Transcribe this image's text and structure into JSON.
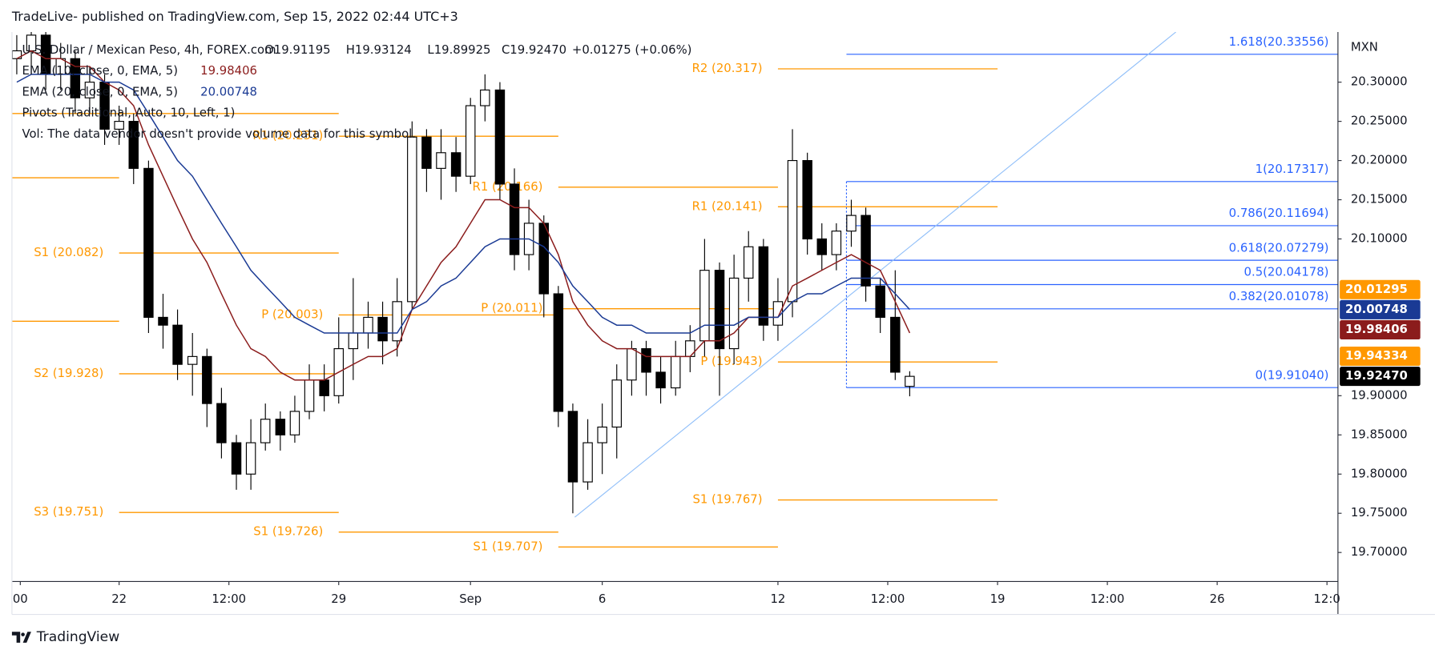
{
  "chart_data": {
    "type": "candlestick",
    "header": "TradeLive- published on TradingView.com, Sep 15, 2022 02:44 UTC+3",
    "symbol": "U.S. Dollar / Mexican Peso, 4h, FOREX.com",
    "ohlc": [
      "O19.91195",
      "H19.93124",
      "L19.89925",
      "C19.92470",
      "+0.01275 (+0.06%)"
    ],
    "notes": [
      "Pivots (Traditional, Auto, 10, Left, 1)",
      "Vol: The data vendor doesn't provide volume data for this symbol."
    ],
    "currency": "MXN",
    "brand": "TradingView",
    "up_color": "#ffffff",
    "down_color": "#000000",
    "xlim": [
      -2.44,
      27.75
    ],
    "ylim": [
      19.663,
      20.364
    ],
    "xticks": [
      {
        "value": -2.25,
        "label": "00"
      },
      {
        "value": 0,
        "label": "22"
      },
      {
        "value": 2.5,
        "label": "12:00"
      },
      {
        "value": 5,
        "label": "29"
      },
      {
        "value": 8,
        "label": "Sep"
      },
      {
        "value": 11,
        "label": "6"
      },
      {
        "value": 15,
        "label": "12"
      },
      {
        "value": 17.5,
        "label": "12:00"
      },
      {
        "value": 20,
        "label": "19"
      },
      {
        "value": 22.5,
        "label": "12:00"
      },
      {
        "value": 25,
        "label": "26"
      },
      {
        "value": 27.5,
        "label": "12:0"
      }
    ],
    "yticks": [
      {
        "value": 19.7,
        "label": "19.70000"
      },
      {
        "value": 19.75,
        "label": "19.75000"
      },
      {
        "value": 19.8,
        "label": "19.80000"
      },
      {
        "value": 19.85,
        "label": "19.85000"
      },
      {
        "value": 19.9,
        "label": "19.90000"
      },
      {
        "value": 20.1,
        "label": "20.10000"
      },
      {
        "value": 20.15,
        "label": "20.15000"
      },
      {
        "value": 20.2,
        "label": "20.20000"
      },
      {
        "value": 20.25,
        "label": "20.25000"
      },
      {
        "value": 20.3,
        "label": "20.30000"
      }
    ],
    "x": [
      -2.33,
      -2,
      -1.67,
      -1.33,
      -1,
      -0.67,
      -0.33,
      0,
      0.33,
      0.67,
      1,
      1.33,
      1.67,
      2,
      2.33,
      2.67,
      3,
      3.33,
      3.67,
      4,
      4.33,
      4.67,
      5,
      5.33,
      5.67,
      6,
      6.33,
      6.67,
      7,
      7.33,
      7.67,
      8,
      8.33,
      8.67,
      9,
      9.33,
      9.67,
      10,
      10.33,
      10.67,
      11,
      11.33,
      11.67,
      12,
      12.33,
      12.67,
      13,
      13.33,
      13.67,
      14,
      14.33,
      14.67,
      15,
      15.33,
      15.67,
      16,
      16.33,
      16.67,
      17,
      17.33,
      17.67,
      18
    ],
    "open": [
      20.33,
      20.34,
      20.36,
      20.31,
      20.33,
      20.28,
      20.3,
      20.24,
      20.25,
      20.19,
      20.0,
      19.99,
      19.94,
      19.95,
      19.89,
      19.84,
      19.8,
      19.84,
      19.87,
      19.85,
      19.88,
      19.92,
      19.9,
      19.96,
      19.98,
      20.0,
      19.97,
      20.02,
      20.23,
      20.19,
      20.21,
      20.18,
      20.27,
      20.29,
      20.17,
      20.08,
      20.12,
      20.03,
      19.88,
      19.79,
      19.84,
      19.86,
      19.92,
      19.96,
      19.93,
      19.91,
      19.95,
      19.97,
      20.06,
      19.96,
      20.05,
      20.09,
      19.99,
      20.02,
      20.2,
      20.1,
      20.08,
      20.11,
      20.13,
      20.04,
      20.0,
      19.91195
    ],
    "high": [
      20.36,
      20.37,
      20.37,
      20.35,
      20.34,
      20.32,
      20.31,
      20.27,
      20.26,
      20.2,
      20.03,
      20.01,
      19.98,
      19.96,
      19.91,
      19.85,
      19.87,
      19.89,
      19.88,
      19.9,
      19.94,
      19.94,
      20.0,
      20.05,
      20.02,
      20.02,
      20.05,
      20.25,
      20.24,
      20.24,
      20.23,
      20.28,
      20.31,
      20.3,
      20.19,
      20.15,
      20.13,
      20.04,
      19.89,
      19.87,
      19.89,
      19.94,
      19.97,
      19.97,
      19.95,
      19.97,
      19.99,
      20.1,
      20.07,
      20.08,
      20.11,
      20.1,
      20.05,
      20.24,
      20.21,
      20.12,
      20.12,
      20.15,
      20.14,
      20.05,
      20.06,
      19.93124
    ],
    "low": [
      20.31,
      20.32,
      20.29,
      20.29,
      20.26,
      20.26,
      20.22,
      20.22,
      20.17,
      19.98,
      19.96,
      19.92,
      19.9,
      19.86,
      19.82,
      19.78,
      19.78,
      19.83,
      19.83,
      19.84,
      19.87,
      19.88,
      19.89,
      19.92,
      19.96,
      19.94,
      19.95,
      20.01,
      20.16,
      20.15,
      20.16,
      20.17,
      20.25,
      20.15,
      20.06,
      20.06,
      20.0,
      19.86,
      19.75,
      19.78,
      19.8,
      19.82,
      19.9,
      19.9,
      19.89,
      19.9,
      19.93,
      19.95,
      19.9,
      19.94,
      20.02,
      19.97,
      19.97,
      20.0,
      20.08,
      20.06,
      20.06,
      20.09,
      20.02,
      19.98,
      19.92,
      19.89925
    ],
    "close": [
      20.34,
      20.36,
      20.31,
      20.33,
      20.28,
      20.3,
      20.24,
      20.25,
      20.19,
      20.0,
      19.99,
      19.94,
      19.95,
      19.89,
      19.84,
      19.8,
      19.84,
      19.87,
      19.85,
      19.88,
      19.92,
      19.9,
      19.96,
      19.98,
      20.0,
      19.97,
      20.02,
      20.23,
      20.19,
      20.21,
      20.18,
      20.27,
      20.29,
      20.17,
      20.08,
      20.12,
      20.03,
      19.88,
      19.79,
      19.84,
      19.86,
      19.92,
      19.96,
      19.93,
      19.91,
      19.95,
      19.97,
      20.06,
      19.96,
      20.05,
      20.09,
      19.99,
      20.02,
      20.2,
      20.1,
      20.08,
      20.11,
      20.13,
      20.04,
      20.0,
      19.93,
      19.9247
    ],
    "series": [
      {
        "name": "EMA (10, close, 0, EMA, 5)",
        "value_label": "19.98406",
        "color": "#8b1c1c",
        "values": [
          20.33,
          20.34,
          20.33,
          20.33,
          20.32,
          20.32,
          20.3,
          20.29,
          20.27,
          20.22,
          20.18,
          20.14,
          20.1,
          20.07,
          20.03,
          19.99,
          19.96,
          19.95,
          19.93,
          19.92,
          19.92,
          19.92,
          19.93,
          19.94,
          19.95,
          19.95,
          19.96,
          20.01,
          20.04,
          20.07,
          20.09,
          20.12,
          20.15,
          20.15,
          20.14,
          20.14,
          20.12,
          20.08,
          20.02,
          19.99,
          19.97,
          19.96,
          19.96,
          19.95,
          19.95,
          19.95,
          19.95,
          19.97,
          19.97,
          19.98,
          20.0,
          20.0,
          20.0,
          20.04,
          20.05,
          20.06,
          20.07,
          20.08,
          20.07,
          20.06,
          20.02,
          19.98
        ]
      },
      {
        "name": "EMA (20, close, 0, EMA, 5)",
        "value_label": "20.00748",
        "color": "#1a3a94",
        "values": [
          20.3,
          20.31,
          20.31,
          20.31,
          20.31,
          20.31,
          20.3,
          20.3,
          20.29,
          20.26,
          20.23,
          20.2,
          20.18,
          20.15,
          20.12,
          20.09,
          20.06,
          20.04,
          20.02,
          20.0,
          19.99,
          19.98,
          19.98,
          19.98,
          19.98,
          19.98,
          19.98,
          20.01,
          20.02,
          20.04,
          20.05,
          20.07,
          20.09,
          20.1,
          20.1,
          20.1,
          20.09,
          20.07,
          20.04,
          20.02,
          20.0,
          19.99,
          19.99,
          19.98,
          19.98,
          19.98,
          19.98,
          19.99,
          19.99,
          19.99,
          20.0,
          20.0,
          20.0,
          20.02,
          20.03,
          20.03,
          20.04,
          20.05,
          20.05,
          20.05,
          20.03,
          20.01
        ]
      }
    ],
    "pivot_color": "#ff9800",
    "pivots": [
      {
        "label": "R2 (20.317)",
        "value": 20.317,
        "x": [
          15,
          20
        ]
      },
      {
        "value": 20.26,
        "x": [
          -2.44,
          5
        ]
      },
      {
        "label": "R1 (20.231)",
        "value": 20.231,
        "x": [
          5,
          10
        ]
      },
      {
        "value": 20.178,
        "x": [
          -2.44,
          0
        ]
      },
      {
        "label": "R1 (20.166)",
        "value": 20.166,
        "x": [
          10,
          15
        ]
      },
      {
        "label": "R1 (20.141)",
        "value": 20.141,
        "x": [
          15,
          20
        ]
      },
      {
        "label": "S1 (20.082)",
        "value": 20.082,
        "x": [
          0,
          5
        ]
      },
      {
        "label": "P (20.011)",
        "value": 20.011,
        "x": [
          10,
          15
        ]
      },
      {
        "label": "P (20.003)",
        "value": 20.003,
        "x": [
          5,
          10
        ]
      },
      {
        "value": 19.995,
        "x": [
          -2.44,
          0
        ]
      },
      {
        "label": "P (19.943)",
        "value": 19.943,
        "x": [
          15,
          20
        ]
      },
      {
        "label": "S2 (19.928)",
        "value": 19.928,
        "x": [
          0,
          5
        ]
      },
      {
        "label": "S1 (19.767)",
        "value": 19.767,
        "x": [
          15,
          20
        ]
      },
      {
        "label": "S3 (19.751)",
        "value": 19.751,
        "x": [
          0,
          5
        ]
      },
      {
        "label": "S1 (19.726)",
        "value": 19.726,
        "x": [
          5,
          10
        ]
      },
      {
        "label": "S1 (19.707)",
        "value": 19.707,
        "x": [
          10,
          15
        ]
      }
    ],
    "fib_color": "#2962ff",
    "fib_start": 16.56,
    "fib": [
      {
        "label": "1.618(20.33556)",
        "value": 20.33556
      },
      {
        "label": "1(20.17317)",
        "value": 20.17317
      },
      {
        "label": "0.786(20.11694)",
        "value": 20.11694
      },
      {
        "label": "0.618(20.07279)",
        "value": 20.07279
      },
      {
        "label": "0.5(20.04178)",
        "value": 20.04178
      },
      {
        "label": "0.382(20.01078)",
        "value": 20.01078
      },
      {
        "label": "0(19.91040)",
        "value": 19.9104
      }
    ],
    "trendline": {
      "color": "#90bff9",
      "x": [
        10.375,
        24.06
      ],
      "y": [
        19.745,
        20.364
      ]
    },
    "price_labels": [
      {
        "label": "20.01295",
        "value": 20.01295,
        "color": "#ff9800"
      },
      {
        "label": "20.00748",
        "value": 20.00748,
        "color": "#1a3a94"
      },
      {
        "label": "19.98406",
        "value": 19.98406,
        "color": "#8b1c1c"
      },
      {
        "label": "19.94334",
        "value": 19.94334,
        "color": "#ff9800"
      },
      {
        "label": "19.92470",
        "value": 19.9247,
        "color": "#000000"
      }
    ]
  }
}
